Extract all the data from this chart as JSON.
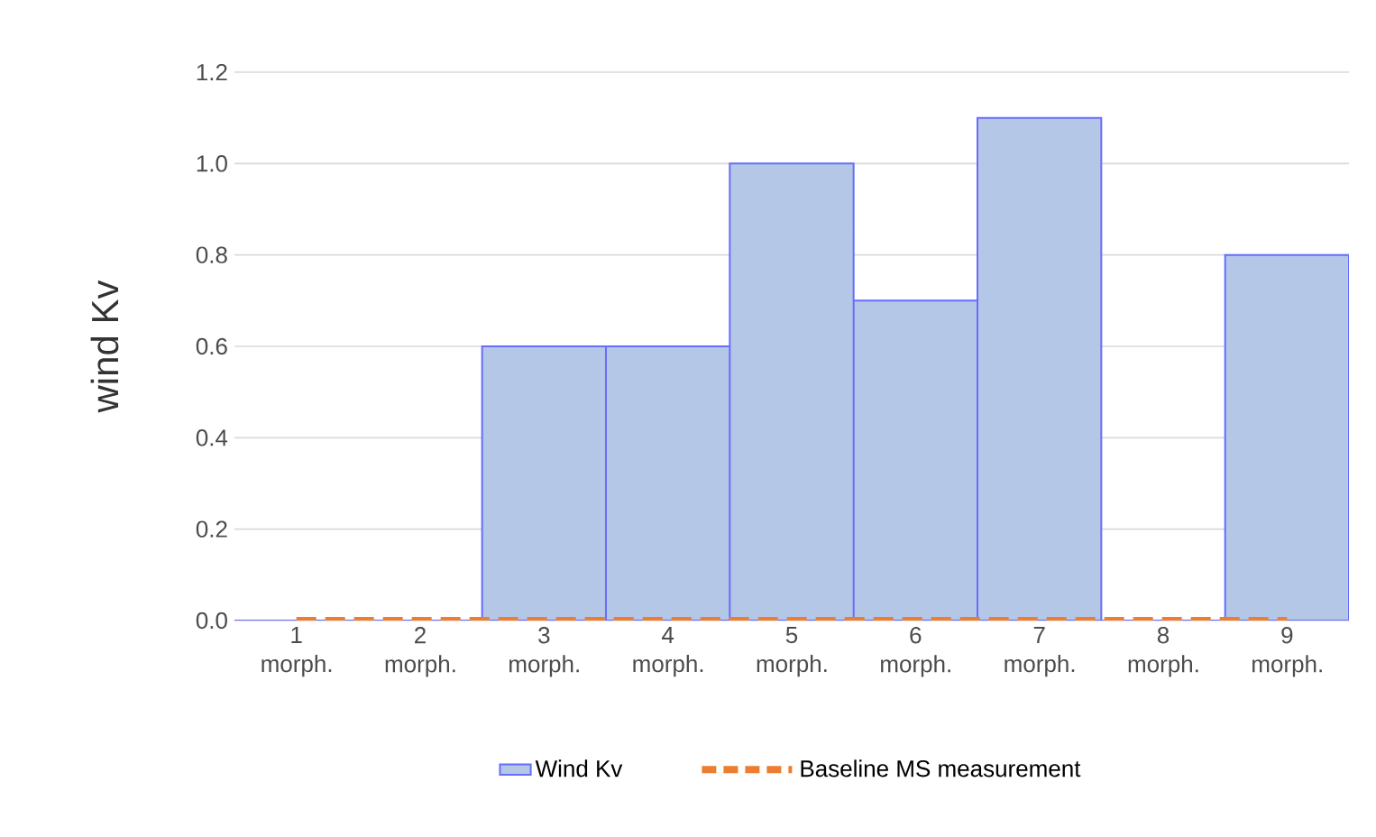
{
  "chart_data": {
    "type": "bar",
    "ylabel": "wind Kv",
    "categories": [
      "1 morph.",
      "2 morph.",
      "3 morph.",
      "4 morph.",
      "5 morph.",
      "6 morph.",
      "7 morph.",
      "8 morph.",
      "9 morph."
    ],
    "series": [
      {
        "name": "Wind Kv",
        "color": "#b4c7e7",
        "values": [
          0,
          0,
          0.6,
          0.6,
          1.0,
          0.7,
          1.1,
          0,
          0.8
        ]
      },
      {
        "name": "Baseline MS measurement",
        "type": "line",
        "color": "#ed7d31",
        "line_style": "dashed",
        "values": [
          0,
          0,
          0,
          0,
          0,
          0,
          0,
          0,
          0
        ]
      }
    ],
    "ylim": [
      0,
      1.2
    ],
    "yticks": [
      {
        "value": 0,
        "label": "0.0"
      },
      {
        "value": 0.2,
        "label": "0.2"
      },
      {
        "value": 0.4,
        "label": "0.4"
      },
      {
        "value": 0.6,
        "label": "0.6"
      },
      {
        "value": 0.8,
        "label": "0.8"
      },
      {
        "value": 1.0,
        "label": "1.0"
      },
      {
        "value": 1.2,
        "label": "1.2"
      }
    ],
    "grid": "y",
    "legend": "bottom"
  }
}
